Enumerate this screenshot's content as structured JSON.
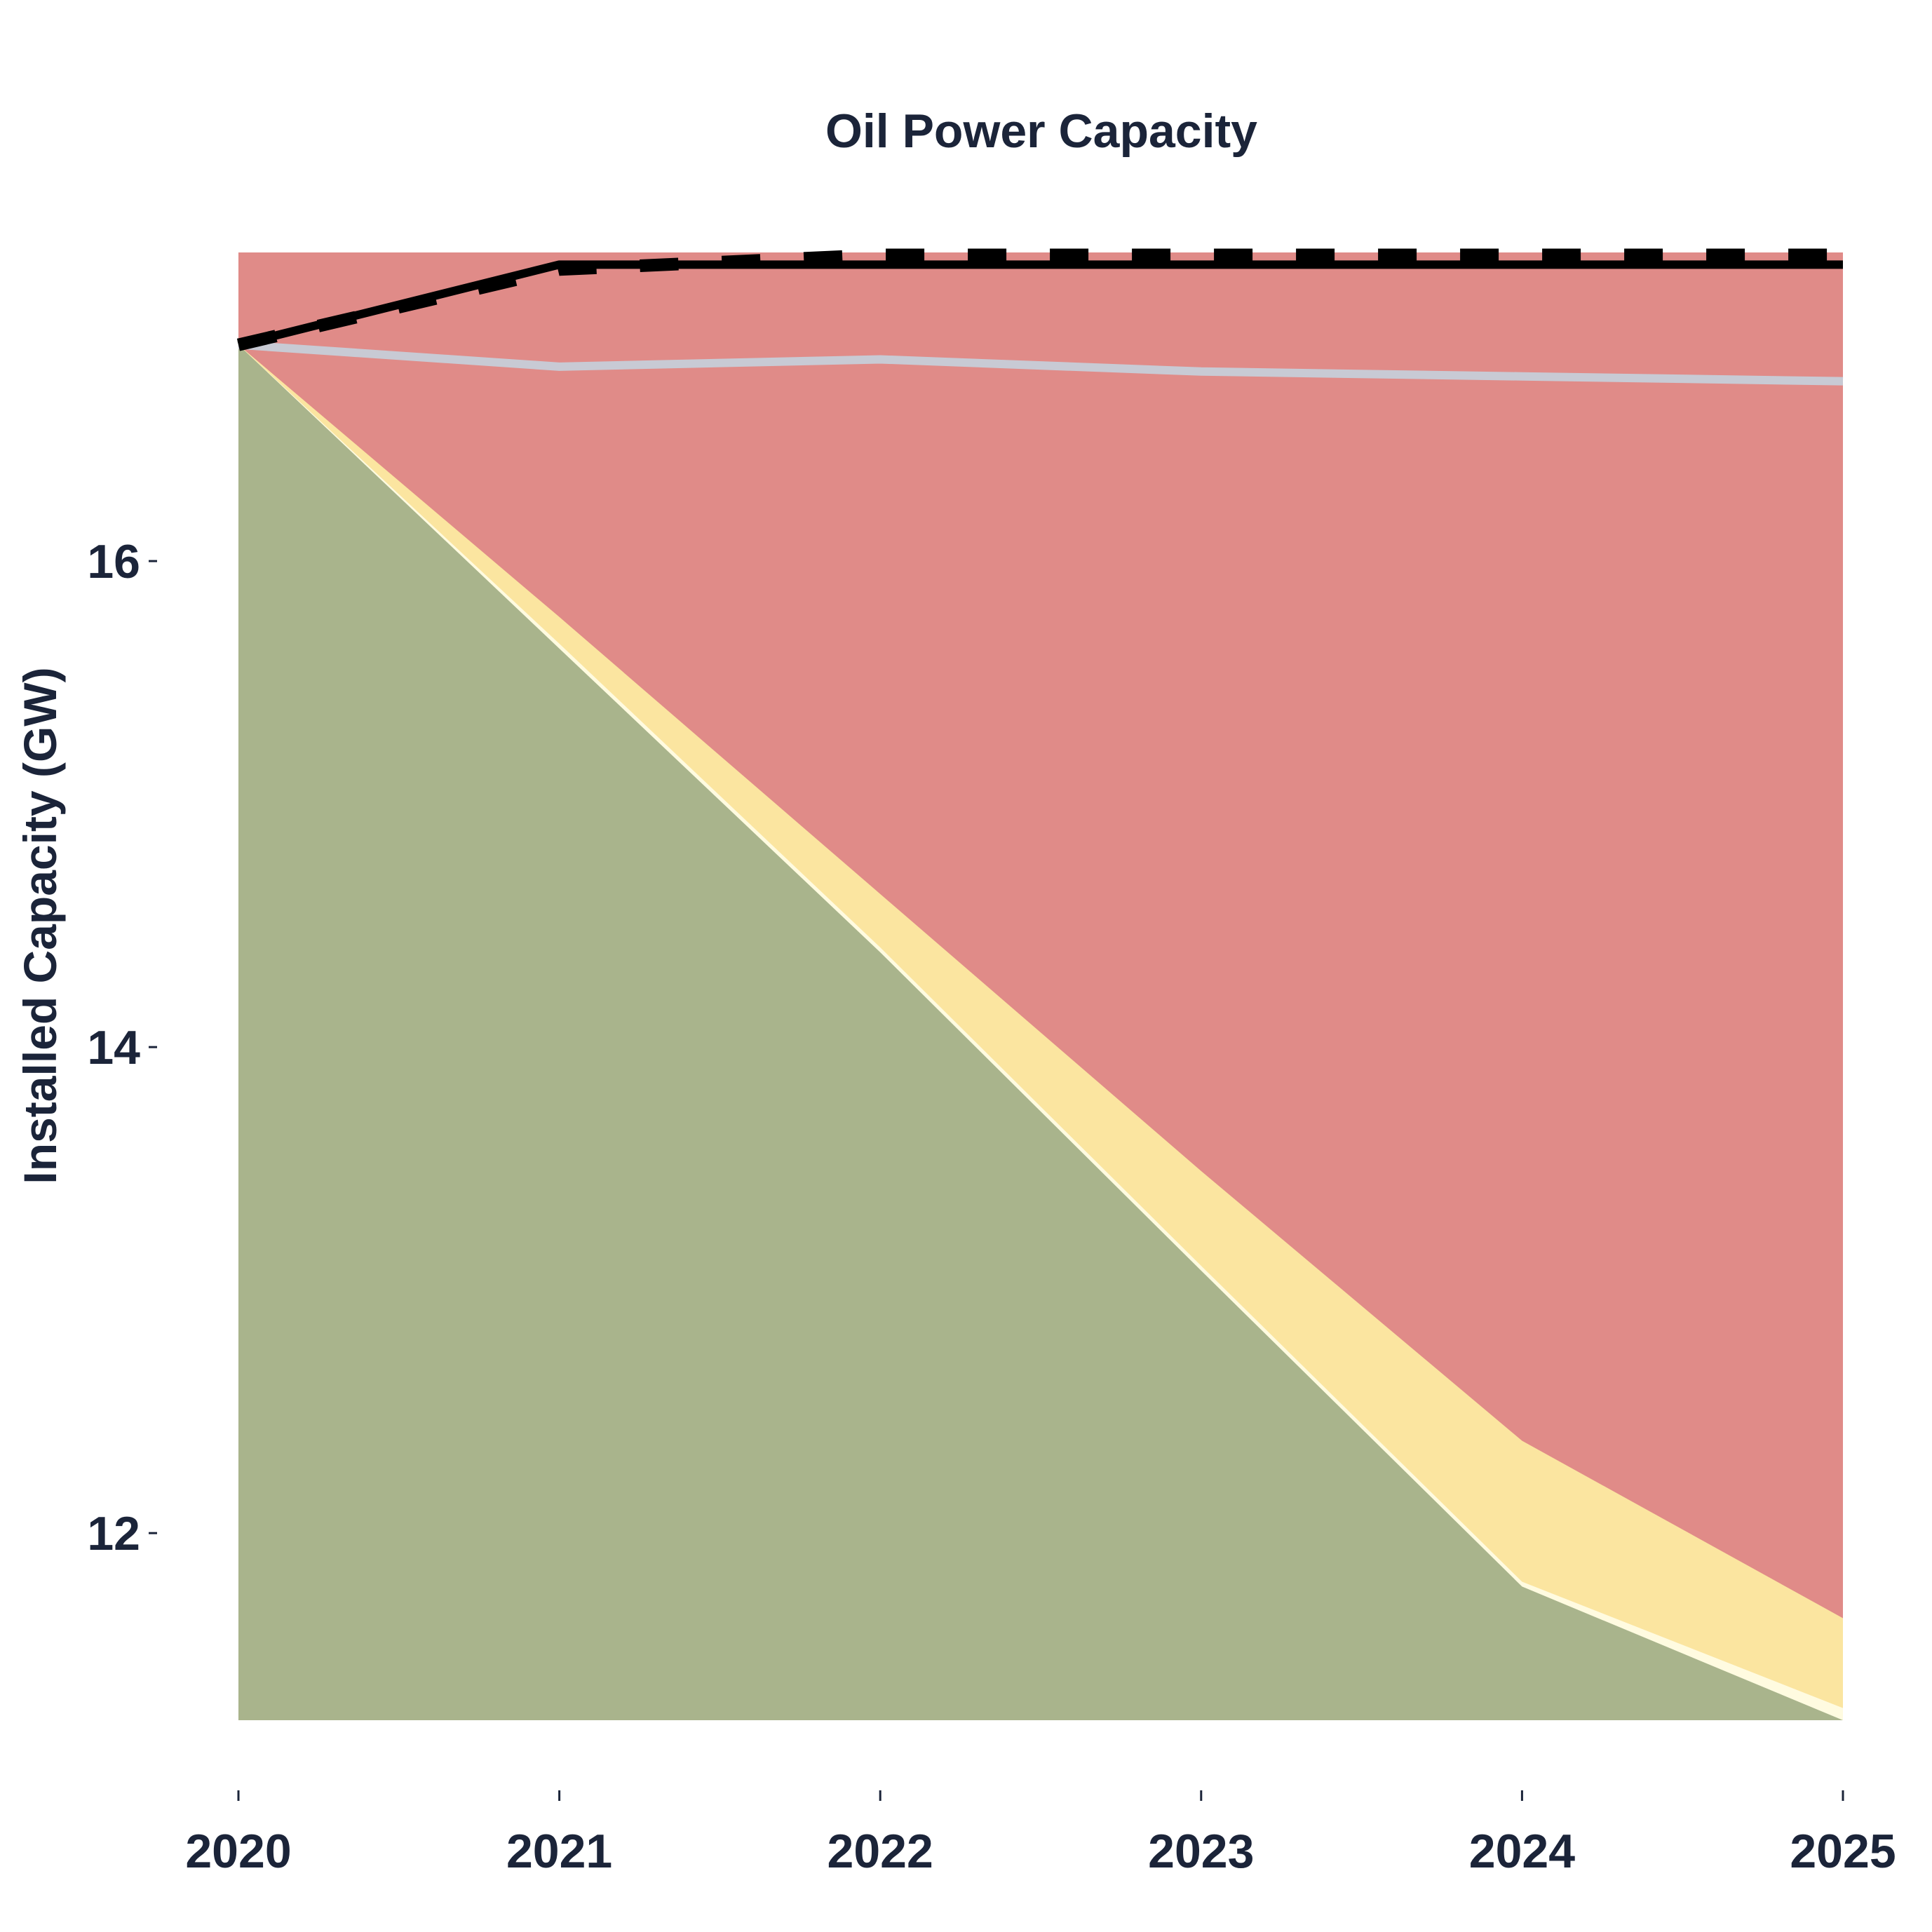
{
  "chart_data": {
    "type": "area",
    "title": "Oil Power Capacity",
    "xlabel": "",
    "ylabel": "Installed Capacity (GW)",
    "x": [
      2020,
      2021,
      2022,
      2023,
      2024,
      2025
    ],
    "xlim": [
      2020,
      2025
    ],
    "ylim": [
      11.23,
      17.27
    ],
    "xticks": [
      "2020",
      "2021",
      "2022",
      "2023",
      "2024",
      "2025"
    ],
    "yticks": [
      12,
      14,
      16
    ],
    "grid": false,
    "stacked": true,
    "areas": [
      {
        "values": [
          16.89,
          15.64,
          14.39,
          13.08,
          11.78,
          11.23
        ],
        "color": "#a9b48c"
      },
      {
        "values": [
          16.89,
          15.66,
          14.41,
          13.1,
          11.8,
          11.28
        ],
        "color": "#fffbe0"
      },
      {
        "values": [
          16.89,
          15.77,
          14.63,
          13.49,
          12.38,
          11.65
        ],
        "color": "#fbe5a0"
      },
      {
        "values": [
          17.27,
          17.27,
          17.27,
          17.27,
          17.27,
          17.27
        ],
        "color": "#e08b88"
      }
    ],
    "lines": [
      {
        "values": [
          16.89,
          16.8,
          16.83,
          16.78,
          16.76,
          16.74
        ],
        "color": "#c8cad4",
        "style": "solid"
      },
      {
        "values": [
          16.89,
          17.22,
          17.22,
          17.22,
          17.22,
          17.22
        ],
        "color": "#000000",
        "style": "solid"
      },
      {
        "values": [
          16.89,
          17.2,
          17.26,
          17.26,
          17.26,
          17.26
        ],
        "color": "#000000",
        "style": "dashed"
      }
    ]
  }
}
